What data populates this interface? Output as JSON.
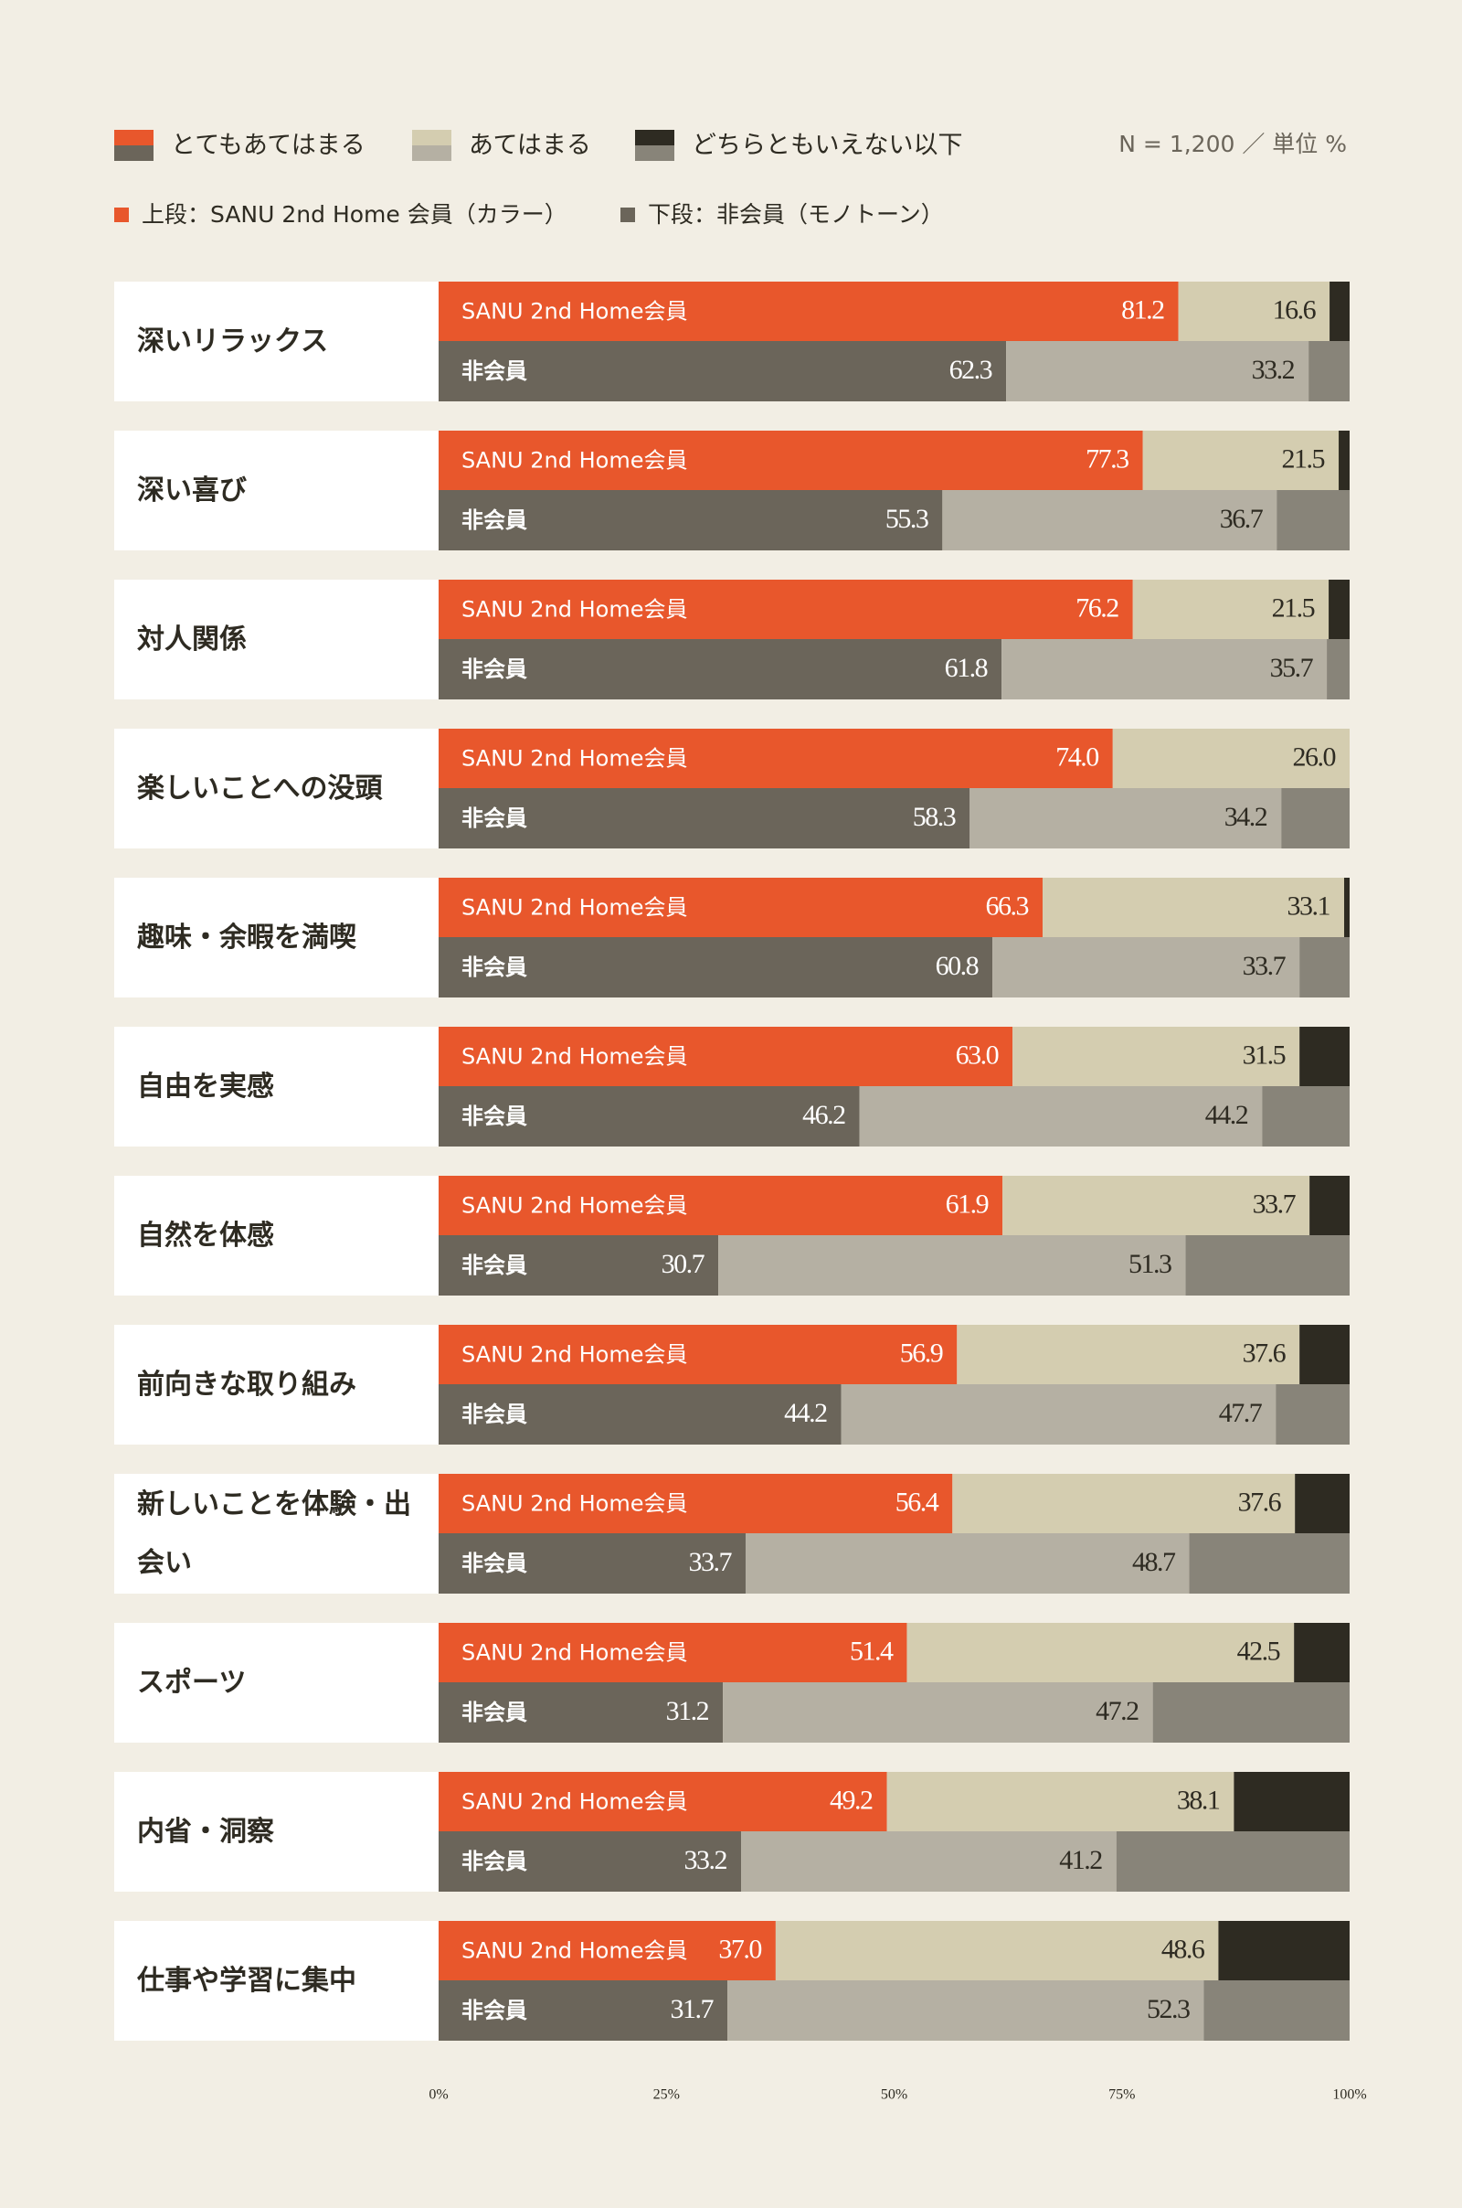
{
  "chart_data": {
    "type": "stacked_bar_pairs",
    "legend": [
      "とてもあてはまる",
      "あてはまる",
      "どちらともいえない以下"
    ],
    "note": "N = 1,200 ／ 単位 %",
    "legend_notes": [
      "上段：SANU 2nd Home 会員（カラー）",
      "下段：非会員（モノトーン）"
    ],
    "groups": [
      "SANU 2nd Home会員",
      "非会員"
    ],
    "categories": [
      "深いリラックス",
      "深い喜び",
      "対人関係",
      "楽しいことへの没頭",
      "趣味・余暇を満喫",
      "自由を実感",
      "自然を体感",
      "前向きな取り組み",
      "新しいことを体験・出会い",
      "スポーツ",
      "内省・洞察",
      "仕事や学習に集中"
    ],
    "series": [
      {
        "name": "とてもあてはまる",
        "colors": [
          "#e8572c",
          "#6b655a"
        ],
        "values": [
          [
            81.2,
            62.3
          ],
          [
            77.3,
            55.3
          ],
          [
            76.2,
            61.8
          ],
          [
            74,
            58.3
          ],
          [
            66.3,
            60.8
          ],
          [
            63,
            46.2
          ],
          [
            61.9,
            30.7
          ],
          [
            56.9,
            44.2
          ],
          [
            56.4,
            33.7
          ],
          [
            51.4,
            31.2
          ],
          [
            49.2,
            33.2
          ],
          [
            37,
            31.7
          ]
        ],
        "value_labels": [
          [
            "81.2",
            "62.3"
          ],
          [
            "77.3",
            "55.3"
          ],
          [
            "76.2",
            "61.8"
          ],
          [
            "74.0",
            "58.3"
          ],
          [
            "66.3",
            "60.8"
          ],
          [
            "63.0",
            "46.2"
          ],
          [
            "61.9",
            "30.7"
          ],
          [
            "56.9",
            "44.2"
          ],
          [
            "56.4",
            "33.7"
          ],
          [
            "51.4",
            "31.2"
          ],
          [
            "49.2",
            "33.2"
          ],
          [
            "37.0",
            "31.7"
          ]
        ]
      },
      {
        "name": "あてはまる",
        "colors": [
          "#d4cdb0",
          "#b5b0a3"
        ],
        "values": [
          [
            16.6,
            33.2
          ],
          [
            21.5,
            36.7
          ],
          [
            21.5,
            35.7
          ],
          [
            26,
            34.2
          ],
          [
            33.1,
            33.7
          ],
          [
            31.5,
            44.2
          ],
          [
            33.7,
            51.3
          ],
          [
            37.6,
            47.7
          ],
          [
            37.6,
            48.7
          ],
          [
            42.5,
            47.2
          ],
          [
            38.1,
            41.2
          ],
          [
            48.6,
            52.3
          ]
        ],
        "value_labels": [
          [
            "16.6",
            "33.2"
          ],
          [
            "21.5",
            "36.7"
          ],
          [
            "21.5",
            "35.7"
          ],
          [
            "26.0",
            "34.2"
          ],
          [
            "33.1",
            "33.7"
          ],
          [
            "31.5",
            "44.2"
          ],
          [
            "33.7",
            "51.3"
          ],
          [
            "37.6",
            "47.7"
          ],
          [
            "37.6",
            "48.7"
          ],
          [
            "42.5",
            "47.2"
          ],
          [
            "38.1",
            "41.2"
          ],
          [
            "48.6",
            "52.3"
          ]
        ]
      },
      {
        "name": "どちらともいえない以下",
        "colors": [
          "#2e2b22",
          "#888479"
        ],
        "values": [
          [
            2.2,
            4.5
          ],
          [
            1.2,
            8
          ],
          [
            2.3,
            2.5
          ],
          [
            0,
            7.5
          ],
          [
            0.6,
            5.5
          ],
          [
            5.5,
            9.6
          ],
          [
            4.4,
            18
          ],
          [
            5.5,
            8.1
          ],
          [
            6,
            17.6
          ],
          [
            6.1,
            21.6
          ],
          [
            12.7,
            25.6
          ],
          [
            14.4,
            16
          ]
        ]
      }
    ],
    "xlim": [
      0,
      100
    ],
    "xticks": [
      {
        "value": 0,
        "label": "0%"
      },
      {
        "value": 25,
        "label": "25%"
      },
      {
        "value": 50,
        "label": "50%"
      },
      {
        "value": 75,
        "label": "75%"
      },
      {
        "value": 100,
        "label": "100%"
      }
    ]
  }
}
